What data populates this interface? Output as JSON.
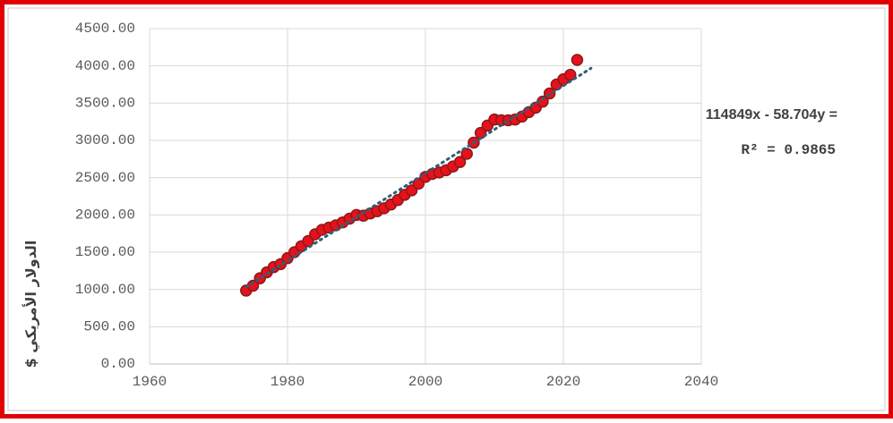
{
  "chart_data": {
    "type": "scatter",
    "x": [
      1974,
      1975,
      1976,
      1977,
      1978,
      1979,
      1980,
      1981,
      1982,
      1983,
      1984,
      1985,
      1986,
      1987,
      1988,
      1989,
      1990,
      1991,
      1992,
      1993,
      1994,
      1995,
      1996,
      1997,
      1998,
      1999,
      2000,
      2001,
      2002,
      2003,
      2004,
      2005,
      2006,
      2007,
      2008,
      2009,
      2010,
      2011,
      2012,
      2013,
      2014,
      2015,
      2016,
      2017,
      2018,
      2019,
      2020,
      2021,
      2022
    ],
    "values": [
      985,
      1050,
      1150,
      1230,
      1300,
      1340,
      1420,
      1500,
      1580,
      1650,
      1740,
      1800,
      1830,
      1860,
      1900,
      1950,
      2000,
      1990,
      2020,
      2050,
      2090,
      2140,
      2200,
      2270,
      2330,
      2420,
      2510,
      2550,
      2570,
      2600,
      2650,
      2710,
      2820,
      2970,
      3100,
      3200,
      3280,
      3270,
      3270,
      3280,
      3320,
      3380,
      3440,
      3520,
      3630,
      3750,
      3820,
      3880,
      4080
    ],
    "color": "#e8101a",
    "edge_color": "#8b1a1a",
    "xlim": [
      1960,
      2040
    ],
    "xticks": [
      1960,
      1980,
      2000,
      2020,
      2040
    ],
    "ylim": [
      0,
      4500
    ],
    "yticks": [
      {
        "value": 0,
        "label": "0.00"
      },
      {
        "value": 500,
        "label": "500.00"
      },
      {
        "value": 1000,
        "label": "1000.00"
      },
      {
        "value": 1500,
        "label": "1500.00"
      },
      {
        "value": 2000,
        "label": "2000.00"
      },
      {
        "value": 2500,
        "label": "2500.00"
      },
      {
        "value": 3000,
        "label": "3000.00"
      },
      {
        "value": 3500,
        "label": "3500.00"
      },
      {
        "value": 4000,
        "label": "4000.00"
      },
      {
        "value": 4500,
        "label": "4500.00"
      }
    ],
    "grid": true,
    "ylabel": "الدولار الأمريكي $",
    "trendline": {
      "slope": 58.704,
      "intercept": -114849,
      "x_range": [
        1974,
        2024
      ],
      "color": "#2e5f7a",
      "equation": "114849x - 58.704y =",
      "r_squared": "R² = 0.9865"
    }
  }
}
